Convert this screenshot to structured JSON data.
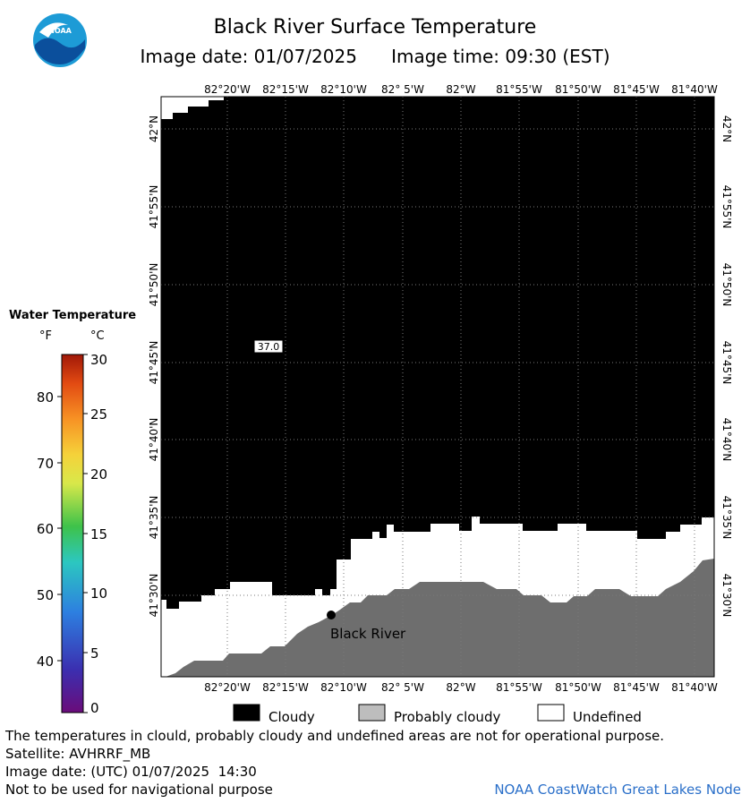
{
  "header": {
    "title": "Black River Surface Temperature",
    "subtitle": "Image date: 01/07/2025      Image time: 09:30 (EST)"
  },
  "logo": {
    "icon": "noaa-logo-icon",
    "text": "NOAA"
  },
  "map": {
    "lon_labels": [
      "82°20'W",
      "82°15'W",
      "82°10'W",
      "82° 5'W",
      "82°W",
      "81°55'W",
      "81°50'W",
      "81°45'W",
      "81°40'W"
    ],
    "lat_labels": [
      "42°N",
      "41°55'N",
      "41°50'N",
      "41°45'N",
      "41°40'N",
      "41°35'N",
      "41°30'N"
    ],
    "temperature_label": "37.0",
    "station_label": "Black River"
  },
  "legend": {
    "title": "Water Temperature",
    "unit_f": "°F",
    "unit_c": "°C",
    "f_ticks": [
      "80",
      "70",
      "60",
      "50",
      "40"
    ],
    "c_ticks": [
      "30",
      "25",
      "20",
      "15",
      "10",
      "5",
      "0"
    ]
  },
  "key": {
    "cloudy": "Cloudy",
    "probably_cloudy": "Probably cloudy",
    "undefined": "Undefined"
  },
  "footer": {
    "note": "The temperatures in clould, probably cloudy and undefined areas are not for operational purpose.",
    "satellite": "Satellite: AVHRRF_MB",
    "utc_date": "Image date: (UTC) 01/07/2025  14:30",
    "disclaimer": "Not to be used for navigational purpose",
    "credit": "NOAA CoastWatch Great Lakes Node"
  },
  "colors": {
    "cloudy": "#000000",
    "probably_cloudy": "#bdbdbd",
    "undefined": "#ffffff",
    "land": "#6e6e6e",
    "credit_text": "#2a6fc9"
  }
}
